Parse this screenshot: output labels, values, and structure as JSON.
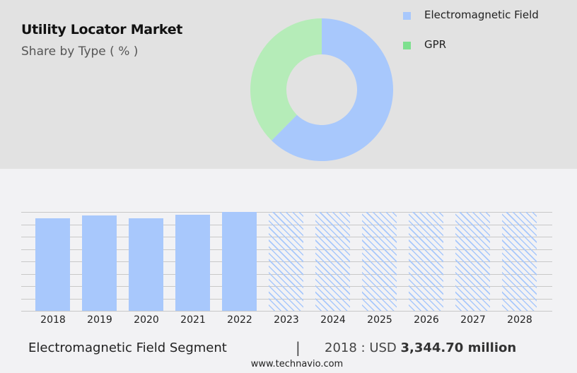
{
  "header": {
    "title": "Utility Locator Market",
    "subtitle": "Share by Type ( % )"
  },
  "legend": {
    "items": [
      {
        "label": "Electromagnetic Field",
        "color": "#a8c8fc"
      },
      {
        "label": "GPR",
        "color": "#7de08e"
      }
    ]
  },
  "footer": {
    "segment_label": "Electromagnetic Field Segment",
    "separator": "|",
    "year_prefix": "2018 : USD ",
    "value": "3,344.70 million",
    "url": "www.technavio.com"
  },
  "chart_data": [
    {
      "type": "pie",
      "title": "Utility Locator Market",
      "subtitle": "Share by Type ( % )",
      "donut": true,
      "categories": [
        "Electromagnetic Field",
        "GPR"
      ],
      "values": [
        62.4,
        37.6
      ],
      "colors": [
        "#a8c8fc",
        "#b5ecb8"
      ],
      "legend_position": "right"
    },
    {
      "type": "bar",
      "title": "Electromagnetic Field Segment",
      "categories": [
        "2018",
        "2019",
        "2020",
        "2021",
        "2022",
        "2023",
        "2024",
        "2025",
        "2026",
        "2027",
        "2028"
      ],
      "values": [
        3344.7,
        3460,
        3345,
        3490,
        3580,
        null,
        null,
        null,
        null,
        null,
        null
      ],
      "forecast": [
        false,
        false,
        false,
        false,
        false,
        true,
        true,
        true,
        true,
        true,
        true
      ],
      "annotation": "2018 : USD 3,344.70 million",
      "xlabel": "",
      "ylabel": "",
      "ylim": [
        0,
        3580
      ],
      "grid": true,
      "gridlines": 9
    }
  ]
}
